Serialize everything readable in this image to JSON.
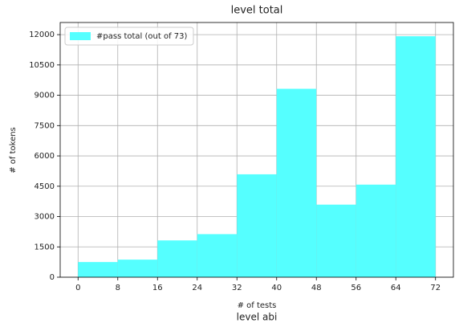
{
  "chart_data": {
    "type": "histogram",
    "title": "level total",
    "xlabel": "# of tests",
    "ylabel": "# of tokens",
    "caption": "level abi",
    "bins": [
      0,
      8,
      16,
      24,
      32,
      40,
      48,
      56,
      64,
      72
    ],
    "series": [
      {
        "name": "#pass total (out of 73)",
        "color": "#55ffff",
        "values": [
          750,
          870,
          1820,
          2130,
          5090,
          9320,
          3590,
          4580,
          11920
        ]
      }
    ],
    "xlim": [
      -3.6,
      75.6
    ],
    "ylim": [
      0,
      12600
    ],
    "xticks": [
      0,
      8,
      16,
      24,
      32,
      40,
      48,
      56,
      64,
      72
    ],
    "yticks": [
      0,
      1500,
      3000,
      4500,
      6000,
      7500,
      9000,
      10500,
      12000
    ],
    "grid": true,
    "legend": "upper left"
  }
}
